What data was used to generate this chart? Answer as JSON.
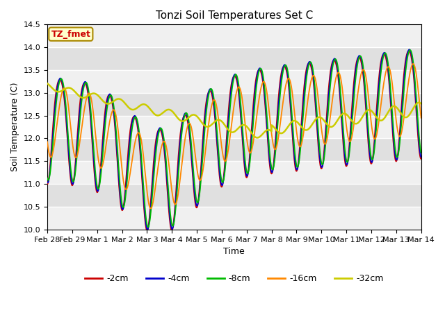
{
  "title": "Tonzi Soil Temperatures Set C",
  "xlabel": "Time",
  "ylabel": "Soil Temperature (C)",
  "ylim": [
    10.0,
    14.5
  ],
  "annotation": "TZ_fmet",
  "legend_labels": [
    "-2cm",
    "-4cm",
    "-8cm",
    "-16cm",
    "-32cm"
  ],
  "legend_colors": [
    "#cc0000",
    "#0000cc",
    "#00bb00",
    "#ff8800",
    "#cccc00"
  ],
  "xtick_labels": [
    "Feb 28",
    "Feb 29",
    "Mar 1",
    "Mar 2",
    "Mar 3",
    "Mar 4",
    "Mar 5",
    "Mar 6",
    "Mar 7",
    "Mar 8",
    "Mar 9",
    "Mar 10",
    "Mar 11",
    "Mar 12",
    "Mar 13",
    "Mar 14"
  ],
  "plot_bg_color": "#e0e0e0",
  "ytick_vals": [
    10.0,
    10.5,
    11.0,
    11.5,
    12.0,
    12.5,
    13.0,
    13.5,
    14.0,
    14.5
  ]
}
